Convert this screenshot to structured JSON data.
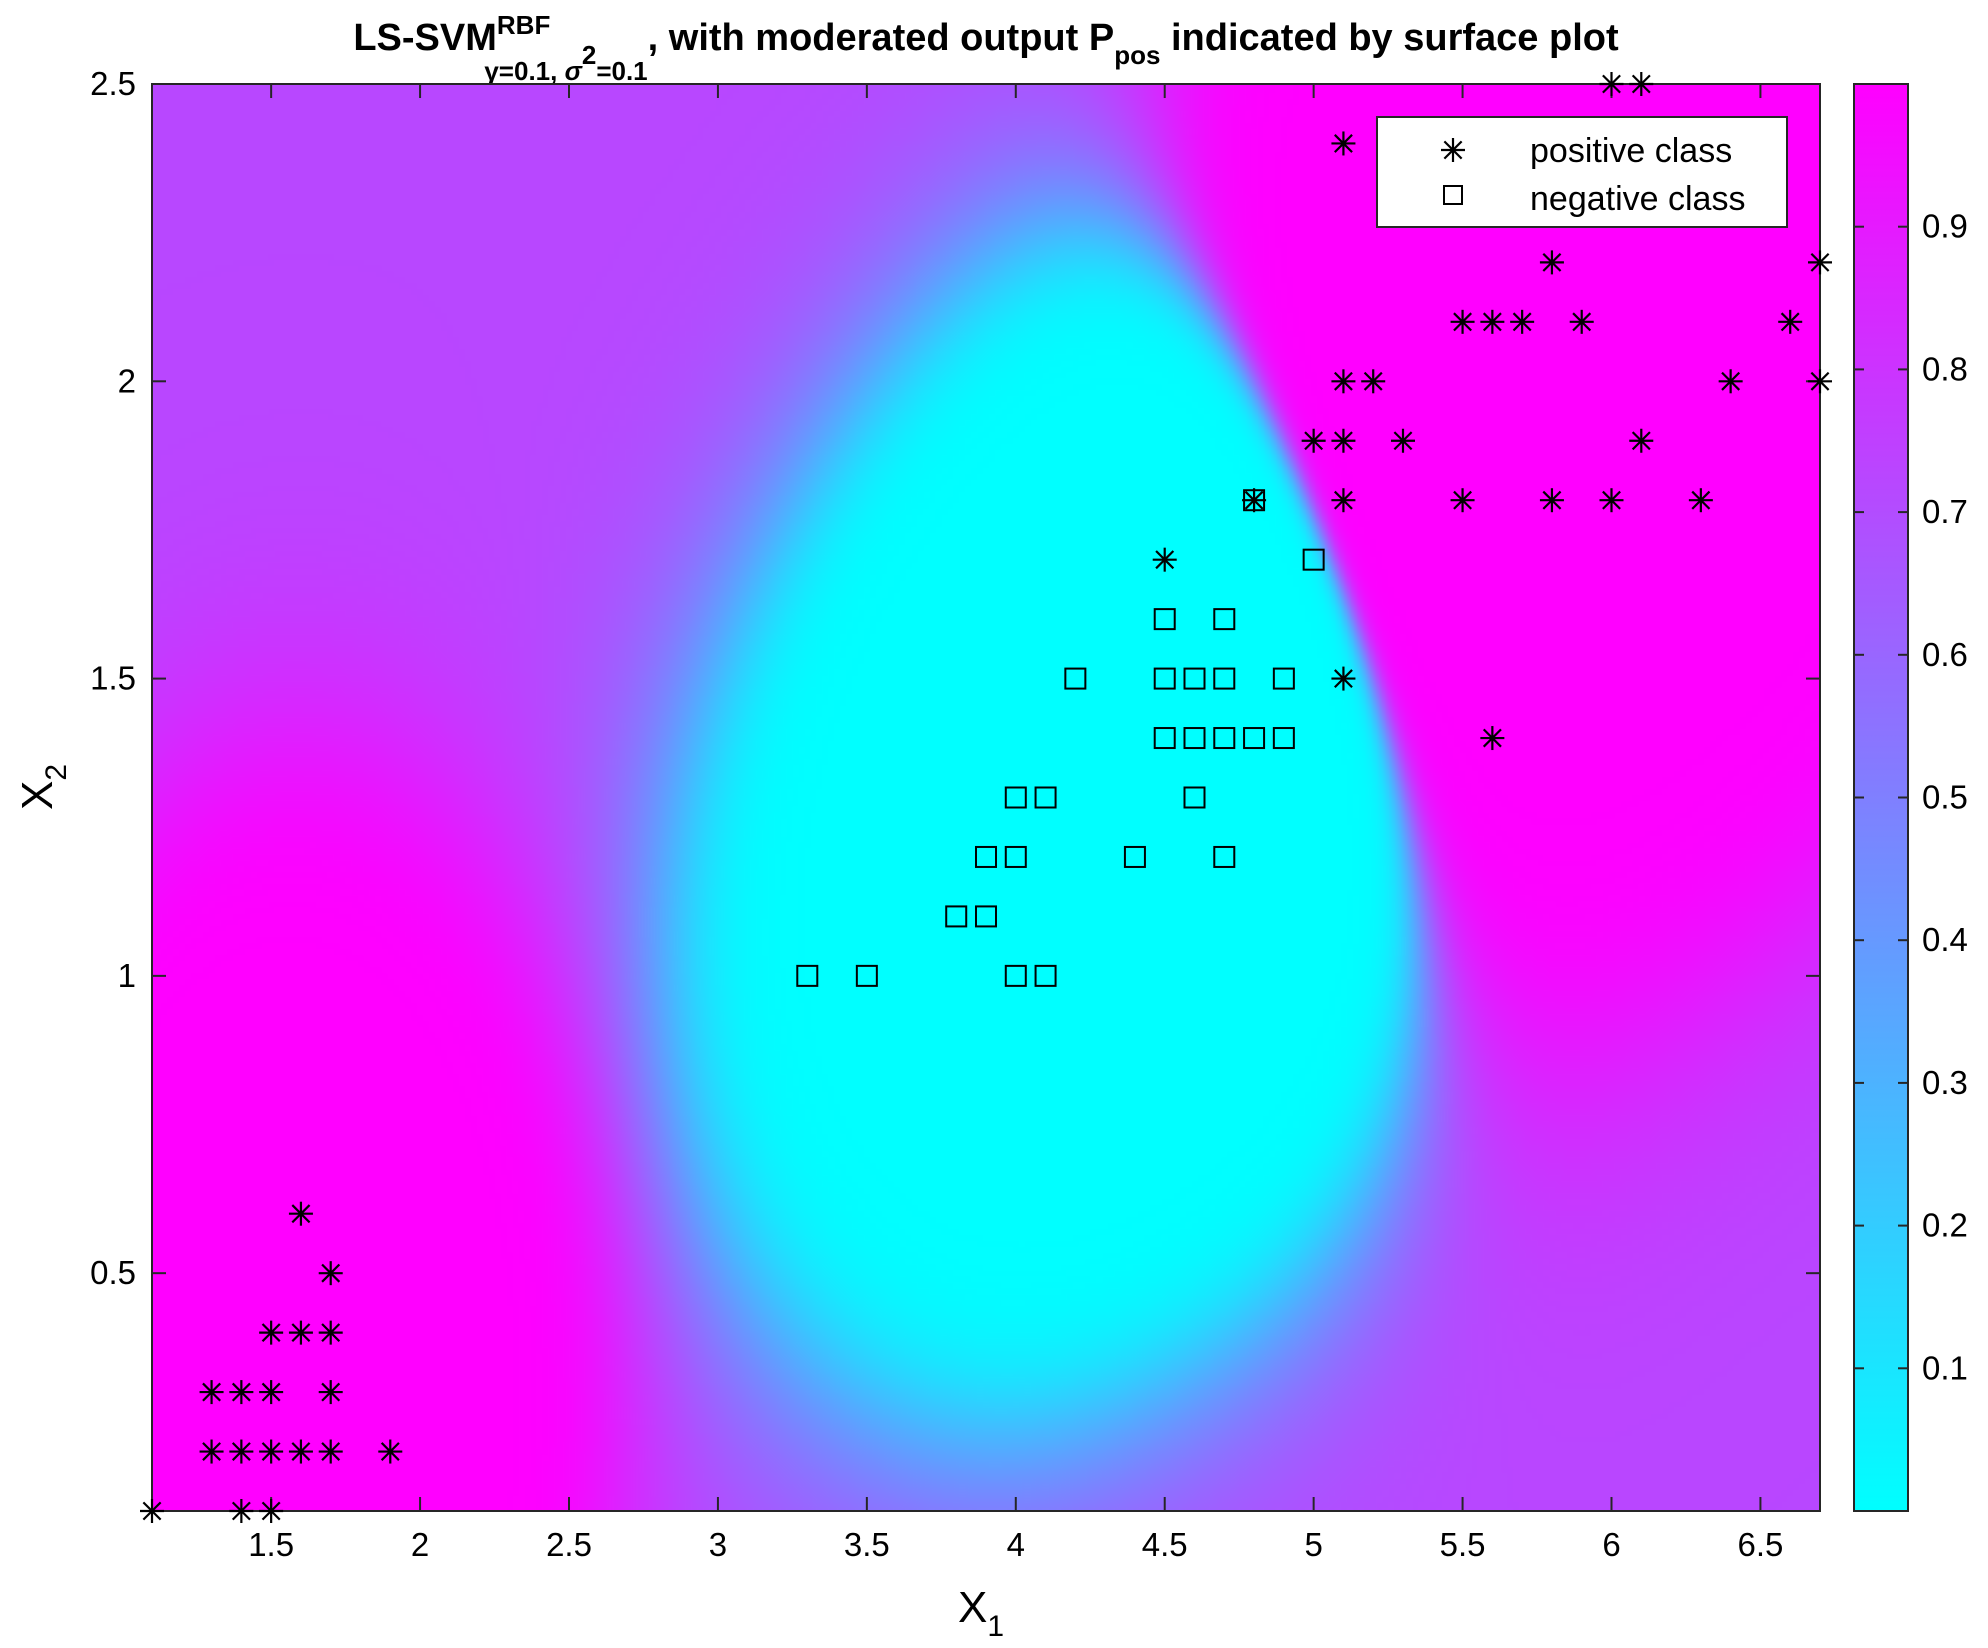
{
  "chart_data": {
    "type": "scatter",
    "title": {
      "prefix": "LS-SVM",
      "sup": "RBF",
      "sub_gamma": "γ=0.1, ",
      "sub_sigma": "σ",
      "sub_sigma_sup": "2",
      "sub_sigma_rest": "=0.1",
      "middle": ", with moderated output P",
      "p_sub": "pos",
      "suffix": " indicated by surface plot"
    },
    "xlabel": {
      "main": "X",
      "sub": "1"
    },
    "ylabel": {
      "main": "X",
      "sub": "2"
    },
    "xlim": [
      1.1,
      6.7
    ],
    "ylim": [
      0.1,
      2.5
    ],
    "xticks": [
      "1.5",
      "2",
      "2.5",
      "3",
      "3.5",
      "4",
      "4.5",
      "5",
      "5.5",
      "6",
      "6.5"
    ],
    "yticks": [
      "0.5",
      "1",
      "1.5",
      "2",
      "2.5"
    ],
    "colorbar": {
      "range": [
        0,
        1
      ],
      "ticks": [
        "0.1",
        "0.2",
        "0.3",
        "0.4",
        "0.5",
        "0.6",
        "0.7",
        "0.8",
        "0.9"
      ],
      "colormap": "cool",
      "low_color": "#00ffff",
      "high_color": "#ff00ff"
    },
    "legend": {
      "placement": "top-right",
      "entries": [
        {
          "label": "positive class",
          "marker": "asterisk"
        },
        {
          "label": "negative class",
          "marker": "square"
        }
      ]
    },
    "series": [
      {
        "name": "positive class",
        "marker": "asterisk",
        "points": [
          [
            1.1,
            0.1
          ],
          [
            1.4,
            0.1
          ],
          [
            1.5,
            0.1
          ],
          [
            1.3,
            0.2
          ],
          [
            1.4,
            0.2
          ],
          [
            1.5,
            0.2
          ],
          [
            1.6,
            0.2
          ],
          [
            1.7,
            0.2
          ],
          [
            1.9,
            0.2
          ],
          [
            1.3,
            0.3
          ],
          [
            1.4,
            0.3
          ],
          [
            1.5,
            0.3
          ],
          [
            1.7,
            0.3
          ],
          [
            1.5,
            0.4
          ],
          [
            1.6,
            0.4
          ],
          [
            1.7,
            0.4
          ],
          [
            1.7,
            0.5
          ],
          [
            1.6,
            0.6
          ],
          [
            4.5,
            1.7
          ],
          [
            4.8,
            1.8
          ],
          [
            5.1,
            1.5
          ],
          [
            5.6,
            1.4
          ],
          [
            5.1,
            1.8
          ],
          [
            5.5,
            1.8
          ],
          [
            5.8,
            1.8
          ],
          [
            6.0,
            1.8
          ],
          [
            6.3,
            1.8
          ],
          [
            5.0,
            1.9
          ],
          [
            5.1,
            1.9
          ],
          [
            5.3,
            1.9
          ],
          [
            6.1,
            1.9
          ],
          [
            5.1,
            2.0
          ],
          [
            5.2,
            2.0
          ],
          [
            6.4,
            2.0
          ],
          [
            6.7,
            2.0
          ],
          [
            5.5,
            2.1
          ],
          [
            5.6,
            2.1
          ],
          [
            5.7,
            2.1
          ],
          [
            5.9,
            2.1
          ],
          [
            6.6,
            2.1
          ],
          [
            5.8,
            2.2
          ],
          [
            6.7,
            2.2
          ],
          [
            5.1,
            2.4
          ],
          [
            6.0,
            2.5
          ],
          [
            6.1,
            2.5
          ]
        ]
      },
      {
        "name": "negative class",
        "marker": "square",
        "points": [
          [
            3.3,
            1.0
          ],
          [
            3.5,
            1.0
          ],
          [
            4.0,
            1.0
          ],
          [
            4.1,
            1.0
          ],
          [
            3.8,
            1.1
          ],
          [
            3.9,
            1.1
          ],
          [
            3.9,
            1.2
          ],
          [
            4.0,
            1.2
          ],
          [
            4.4,
            1.2
          ],
          [
            4.7,
            1.2
          ],
          [
            4.0,
            1.3
          ],
          [
            4.1,
            1.3
          ],
          [
            4.6,
            1.3
          ],
          [
            4.5,
            1.4
          ],
          [
            4.6,
            1.4
          ],
          [
            4.7,
            1.4
          ],
          [
            4.8,
            1.4
          ],
          [
            4.9,
            1.4
          ],
          [
            4.2,
            1.5
          ],
          [
            4.5,
            1.5
          ],
          [
            4.6,
            1.5
          ],
          [
            4.7,
            1.5
          ],
          [
            4.9,
            1.5
          ],
          [
            4.5,
            1.6
          ],
          [
            4.7,
            1.6
          ],
          [
            5.0,
            1.7
          ],
          [
            4.8,
            1.8
          ]
        ]
      }
    ]
  }
}
